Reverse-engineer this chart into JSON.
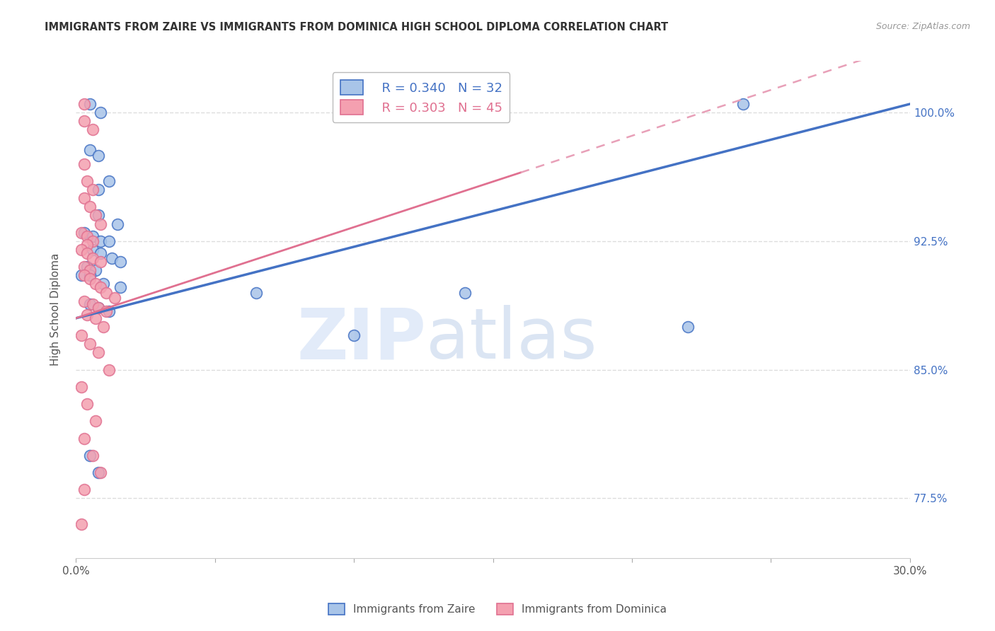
{
  "title": "IMMIGRANTS FROM ZAIRE VS IMMIGRANTS FROM DOMINICA HIGH SCHOOL DIPLOMA CORRELATION CHART",
  "source": "Source: ZipAtlas.com",
  "xlabel": "",
  "ylabel": "High School Diploma",
  "xlim": [
    0.0,
    0.3
  ],
  "ylim": [
    0.74,
    1.03
  ],
  "xticks": [
    0.0,
    0.05,
    0.1,
    0.15,
    0.2,
    0.25,
    0.3
  ],
  "xticklabels": [
    "0.0%",
    "",
    "",
    "",
    "",
    "",
    "30.0%"
  ],
  "yticks": [
    0.775,
    0.85,
    0.925,
    1.0
  ],
  "yticklabels": [
    "77.5%",
    "85.0%",
    "92.5%",
    "100.0%"
  ],
  "zaire_color": "#a8c4e8",
  "dominica_color": "#f4a0b0",
  "zaire_line_color": "#4472c4",
  "dominica_line_color": "#e07090",
  "dominica_dash_color": "#e8a0b8",
  "legend_zaire_R": "R = 0.340",
  "legend_zaire_N": "N = 32",
  "legend_dominica_R": "R = 0.303",
  "legend_dominica_N": "N = 45",
  "zaire_line": [
    [
      0.0,
      0.88
    ],
    [
      0.3,
      1.005
    ]
  ],
  "dominica_line_solid": [
    [
      0.0,
      0.88
    ],
    [
      0.16,
      0.965
    ]
  ],
  "dominica_line_dash": [
    [
      0.16,
      0.965
    ],
    [
      0.3,
      1.04
    ]
  ],
  "zaire_scatter_x": [
    0.005,
    0.009,
    0.005,
    0.008,
    0.012,
    0.008,
    0.008,
    0.015,
    0.003,
    0.006,
    0.009,
    0.012,
    0.006,
    0.009,
    0.013,
    0.016,
    0.004,
    0.007,
    0.002,
    0.005,
    0.01,
    0.016,
    0.065,
    0.14,
    0.005,
    0.008,
    0.012,
    0.22,
    0.24,
    0.005,
    0.008,
    0.1
  ],
  "zaire_scatter_y": [
    1.005,
    1.0,
    0.978,
    0.975,
    0.96,
    0.955,
    0.94,
    0.935,
    0.93,
    0.928,
    0.925,
    0.925,
    0.92,
    0.918,
    0.915,
    0.913,
    0.91,
    0.908,
    0.905,
    0.905,
    0.9,
    0.898,
    0.895,
    0.895,
    0.888,
    0.886,
    0.884,
    0.875,
    1.005,
    0.8,
    0.79,
    0.87
  ],
  "dominica_scatter_x": [
    0.003,
    0.003,
    0.006,
    0.003,
    0.004,
    0.006,
    0.003,
    0.005,
    0.007,
    0.009,
    0.002,
    0.004,
    0.006,
    0.004,
    0.002,
    0.004,
    0.006,
    0.009,
    0.003,
    0.005,
    0.003,
    0.005,
    0.007,
    0.009,
    0.011,
    0.014,
    0.003,
    0.006,
    0.008,
    0.011,
    0.004,
    0.007,
    0.01,
    0.002,
    0.005,
    0.008,
    0.012,
    0.002,
    0.004,
    0.007,
    0.003,
    0.006,
    0.009,
    0.003,
    0.002
  ],
  "dominica_scatter_y": [
    1.005,
    0.995,
    0.99,
    0.97,
    0.96,
    0.955,
    0.95,
    0.945,
    0.94,
    0.935,
    0.93,
    0.928,
    0.925,
    0.923,
    0.92,
    0.918,
    0.915,
    0.913,
    0.91,
    0.908,
    0.905,
    0.903,
    0.9,
    0.898,
    0.895,
    0.892,
    0.89,
    0.888,
    0.886,
    0.884,
    0.882,
    0.88,
    0.875,
    0.87,
    0.865,
    0.86,
    0.85,
    0.84,
    0.83,
    0.82,
    0.81,
    0.8,
    0.79,
    0.78,
    0.76
  ],
  "watermark_zip": "ZIP",
  "watermark_atlas": "atlas",
  "background_color": "#ffffff",
  "grid_color": "#dddddd"
}
